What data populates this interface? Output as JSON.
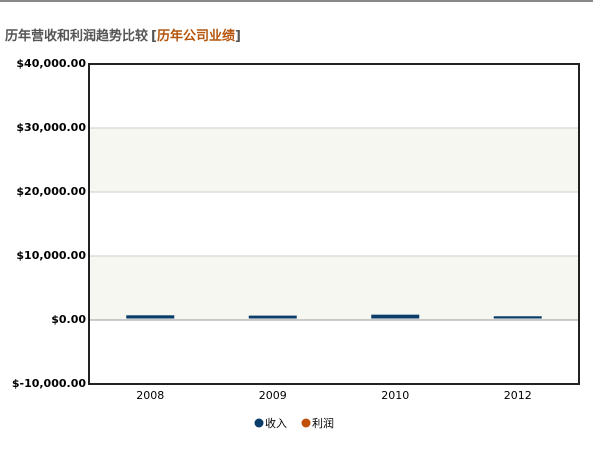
{
  "chart_data": {
    "type": "bar",
    "title": "历年营收和利润趋势比较",
    "link_open": "[",
    "link": "历年公司业绩",
    "link_close": "]",
    "categories": [
      "2008",
      "2009",
      "2010",
      "2012"
    ],
    "series": [
      {
        "name": "收入",
        "color": "#0b3d6b",
        "values": [
          500,
          450,
          600,
          350
        ]
      },
      {
        "name": "利润",
        "color": "#c0500a",
        "values": [
          0,
          0,
          0,
          0
        ]
      }
    ],
    "ylim": [
      -10000,
      40000
    ],
    "yticks": [
      {
        "value": -10000,
        "label": "$-10,000.00"
      },
      {
        "value": 0,
        "label": "$0.00"
      },
      {
        "value": 10000,
        "label": "$10,000.00"
      },
      {
        "value": 20000,
        "label": "$20,000.00"
      },
      {
        "value": 30000,
        "label": "$30,000.00"
      },
      {
        "value": 40000,
        "label": "$40,000.00"
      }
    ],
    "grid": true
  }
}
